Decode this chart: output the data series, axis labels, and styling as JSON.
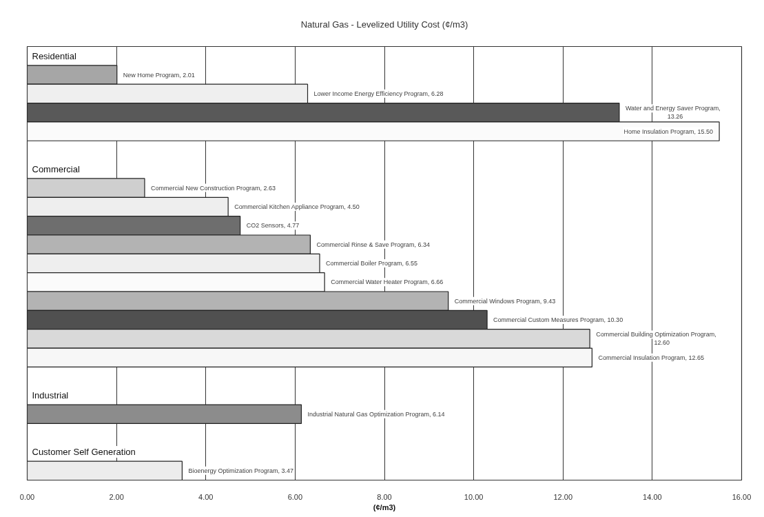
{
  "chart_data": {
    "type": "bar",
    "orientation": "horizontal",
    "title": "Natural Gas - Levelized Utility Cost (¢/m3)",
    "xlabel": "(¢/m3)",
    "categories": [
      "Residential",
      null,
      null,
      null,
      null,
      null,
      "Commercial",
      null,
      null,
      null,
      null,
      null,
      null,
      null,
      null,
      null,
      null,
      null,
      "Industrial",
      null,
      null,
      "Customer Self Generation",
      null
    ],
    "values": [
      null,
      2.01,
      6.28,
      13.26,
      15.5,
      null,
      null,
      2.63,
      4.5,
      4.77,
      6.34,
      6.55,
      6.66,
      9.43,
      10.3,
      12.6,
      12.65,
      null,
      null,
      6.14,
      null,
      null,
      3.47
    ],
    "colors": [
      null,
      "#a6a6a6",
      "#efefef",
      "#595959",
      "#fbfbfb",
      null,
      null,
      "#cfcfcf",
      "#eeeeee",
      "#6e6e6e",
      "#b3b3b3",
      "#eeeeee",
      "#fbfbfb",
      "#b3b3b3",
      "#505050",
      "#d9d9d9",
      "#f7f7f7",
      null,
      null,
      "#8c8c8c",
      null,
      null,
      "#ececec"
    ],
    "value_labels": [
      null,
      "New Home Program, 2.01",
      "Lower Income Energy Efficiency Program, 6.28",
      "Water and Energy Saver Program, 13.26",
      "Home Insulation Program, 15.50",
      null,
      null,
      "Commercial New Construction Program, 2.63",
      "Commercial Kitchen Appliance Program, 4.50",
      "CO2 Sensors, 4.77",
      "Commercial Rinse & Save Program, 6.34",
      "Commercial Boiler Program, 6.55",
      "Commercial Water Heater Program, 6.66",
      "Commercial Windows Program, 9.43",
      "Commercial Custom Measures Program, 10.30",
      "Commercial Building Optimization Program, 12.60",
      "Commercial Insulation Program, 12.65",
      null,
      null,
      "Industrial Natural Gas Optimization Program, 6.14",
      null,
      null,
      "Bioenergy Optimization Program, 3.47"
    ],
    "xlim": [
      0,
      16
    ],
    "xticks": [
      {
        "value": 0,
        "label": "0.00"
      },
      {
        "value": 2,
        "label": "2.00"
      },
      {
        "value": 4,
        "label": "4.00"
      },
      {
        "value": 6,
        "label": "6.00"
      },
      {
        "value": 8,
        "label": "8.00"
      },
      {
        "value": 10,
        "label": "10.00"
      },
      {
        "value": 12,
        "label": "12.00"
      },
      {
        "value": 14,
        "label": "14.00"
      },
      {
        "value": 16,
        "label": "16.00"
      }
    ],
    "grid": "x"
  }
}
